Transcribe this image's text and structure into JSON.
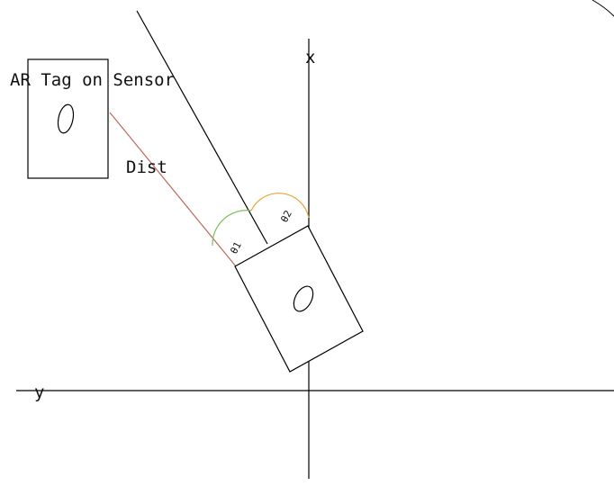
{
  "labels": {
    "ar_tag": "AR Tag on Sensor",
    "dist": "Dist",
    "axis_x": "x",
    "axis_y": "y",
    "theta1": "θ1",
    "theta2": "θ2"
  },
  "colors": {
    "line": "#000000",
    "dist_line": "#c0675a",
    "arc_theta1": "#7bbf5d",
    "arc_theta2": "#e2a63a"
  }
}
